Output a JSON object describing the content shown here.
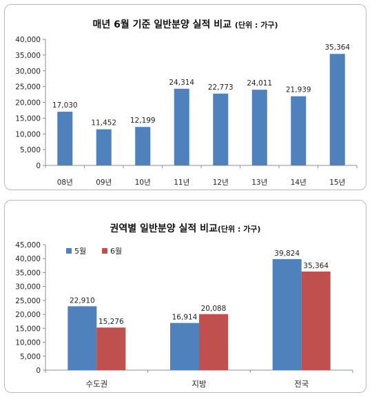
{
  "chart_data": [
    {
      "type": "bar",
      "title": "매년 6월 기준 일반분양 실적 비교",
      "unit": "(단위 : 가구)",
      "categories": [
        "08년",
        "09년",
        "10년",
        "11년",
        "12년",
        "13년",
        "14년",
        "15년"
      ],
      "values": [
        17030,
        11452,
        12199,
        24314,
        22773,
        24011,
        21939,
        35364
      ],
      "value_labels": [
        "17,030",
        "11,452",
        "12,199",
        "24,314",
        "22,773",
        "24,011",
        "21,939",
        "35,364"
      ],
      "ylim": [
        0,
        40000
      ],
      "yticks": [
        "0",
        "5,000",
        "10,000",
        "15,000",
        "20,000",
        "25,000",
        "30,000",
        "35,000",
        "40,000"
      ],
      "bar_color": "#4f81bd"
    },
    {
      "type": "bar",
      "title": "권역별 일반분양 실적 비교",
      "unit": "(단위 : 가구)",
      "categories": [
        "수도권",
        "지방",
        "전국"
      ],
      "series": [
        {
          "name": "5월",
          "values": [
            22910,
            16914,
            39824
          ],
          "labels": [
            "22,910",
            "16,914",
            "39,824"
          ],
          "color": "#4f81bd"
        },
        {
          "name": "6월",
          "values": [
            15276,
            20088,
            35364
          ],
          "labels": [
            "15,276",
            "20,088",
            "35,364"
          ],
          "color": "#c0504d"
        }
      ],
      "ylim": [
        0,
        45000
      ],
      "yticks": [
        "0",
        "5,000",
        "10,000",
        "15,000",
        "20,000",
        "25,000",
        "30,000",
        "35,000",
        "40,000",
        "45,000"
      ],
      "legend": "top-left"
    }
  ]
}
